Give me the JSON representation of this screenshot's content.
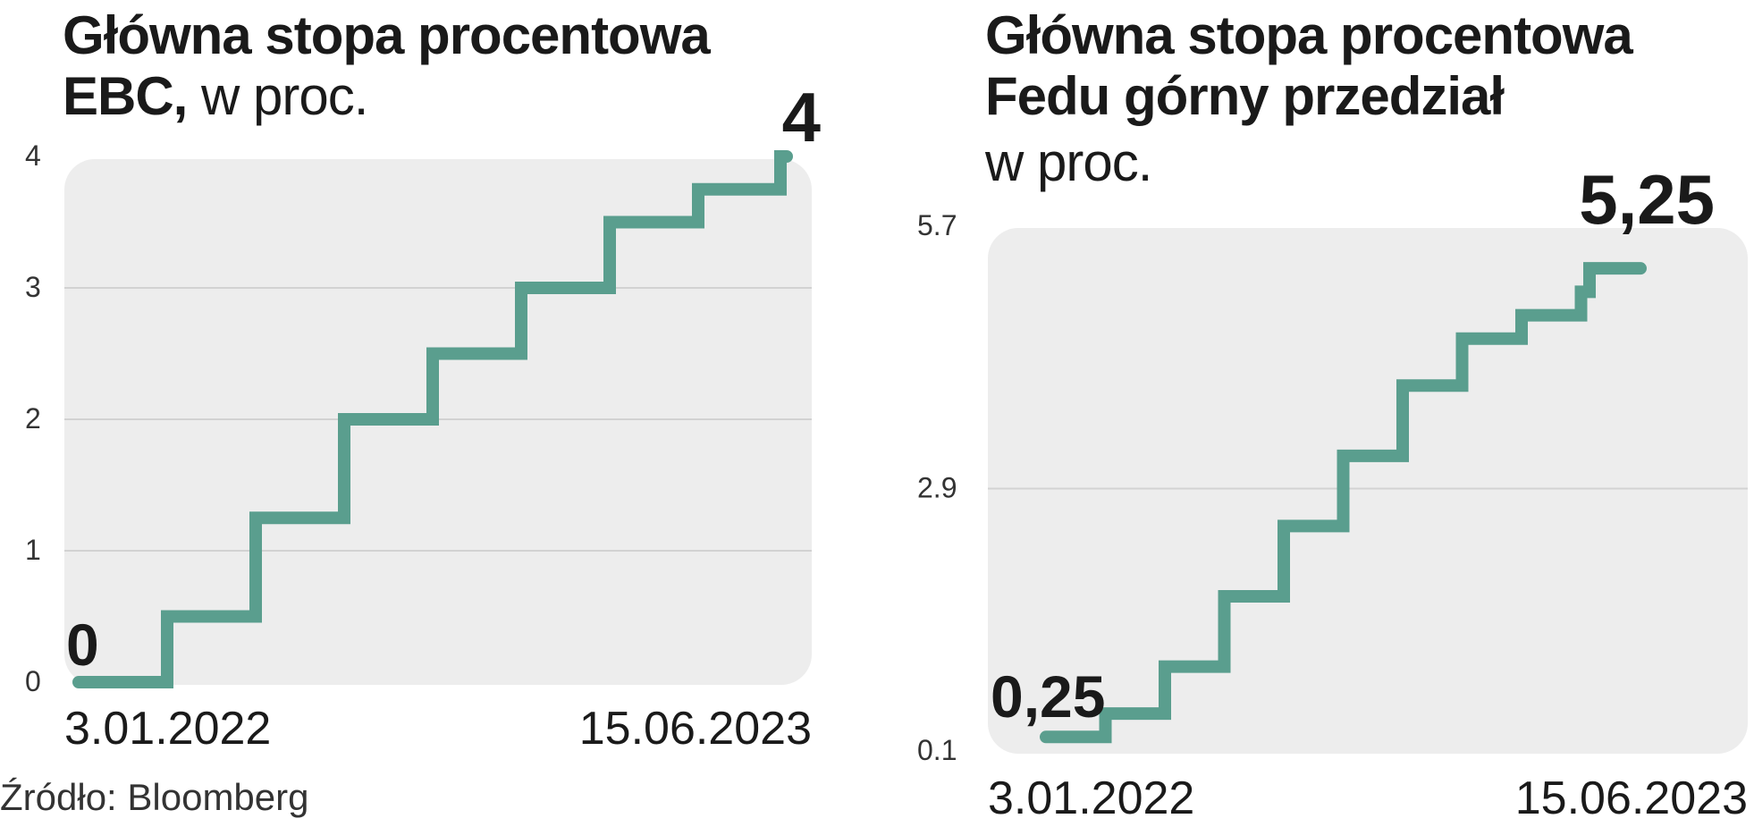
{
  "source_label": "Źródło: Bloomberg",
  "colors": {
    "line": "#5a9e8e",
    "plot_bg": "#ededed",
    "grid": "#d2d2d2",
    "text": "#1a1a1a"
  },
  "chart_data": [
    {
      "type": "line",
      "title": "Główna stopa procentowa EBC,",
      "unit": "w proc.",
      "xlabel": "",
      "ylabel": "",
      "step": true,
      "ylim": [
        0,
        4
      ],
      "yticks": [
        "0",
        "1",
        "2",
        "3",
        "4"
      ],
      "x_ticks": [
        "3.01.2022",
        "15.06.2023"
      ],
      "series": [
        {
          "values": [
            0,
            0.5,
            1.25,
            2,
            2.5,
            3,
            3.5,
            3.75,
            4
          ]
        }
      ],
      "start_label": "0",
      "end_label": "4"
    },
    {
      "type": "line",
      "title": "Główna stopa procentowa Fedu górny przedział",
      "unit": "w proc.",
      "xlabel": "",
      "ylabel": "",
      "step": true,
      "ylim": [
        0.1,
        5.7
      ],
      "yticks": [
        "0.1",
        "2.9",
        "5.7"
      ],
      "x_ticks": [
        "3.01.2022",
        "15.06.2023"
      ],
      "series": [
        {
          "values": [
            0.25,
            0.5,
            1,
            1.75,
            2.5,
            3.25,
            4,
            4.5,
            4.75,
            5,
            5.25
          ]
        }
      ],
      "start_label": "0,25",
      "end_label": "5,25"
    }
  ]
}
